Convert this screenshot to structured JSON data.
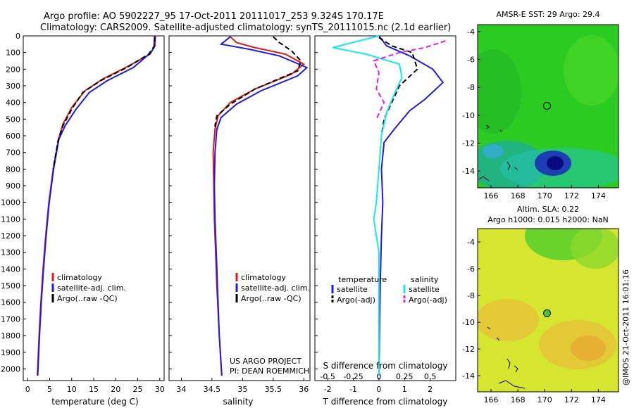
{
  "header": {
    "line1": "Argo profile: AO 5902227_95 17-Oct-2011 20111017_253 9.324S 170.17E",
    "line2": "Climatology: CARS2009. Satellite-adjusted climatology: synTS_20111015.nc (2.1d earlier)"
  },
  "credit": "@IMOS 21-Oct-2011 16:01:16",
  "project": {
    "line1": "US ARGO PROJECT",
    "line2": "PI: DEAN ROEMMICH"
  },
  "colors": {
    "red": "#e8170f",
    "blue": "#1c1ce6",
    "black": "#000000",
    "cyan": "#17e8ef",
    "magenta": "#e11ce6"
  },
  "chart_data": [
    {
      "type": "line",
      "xlabel": "temperature (deg C)",
      "ylabel": "",
      "xlim": [
        -1,
        31
      ],
      "ylim": [
        0,
        2070
      ],
      "xticks": [
        0,
        5,
        10,
        15,
        20,
        25,
        30
      ],
      "yticks": [
        0,
        100,
        200,
        300,
        400,
        500,
        600,
        700,
        800,
        900,
        1000,
        1100,
        1200,
        1300,
        1400,
        1500,
        1600,
        1700,
        1800,
        1900,
        2000
      ],
      "legend": [
        "climatology",
        "satellite-adj. clim.",
        "Argo(..raw -QC)"
      ],
      "series": [
        {
          "name": "climatology",
          "color": "red",
          "style": "solid",
          "points": [
            [
              29.0,
              0
            ],
            [
              28.9,
              60
            ],
            [
              27.8,
              110
            ],
            [
              23,
              180
            ],
            [
              17,
              260
            ],
            [
              13,
              330
            ],
            [
              10,
              430
            ],
            [
              8,
              530
            ],
            [
              7,
              620
            ],
            [
              5.8,
              800
            ],
            [
              4.8,
              1000
            ],
            [
              4.1,
              1200
            ],
            [
              3.5,
              1400
            ],
            [
              3.0,
              1600
            ],
            [
              2.6,
              1800
            ],
            [
              2.2,
              2040
            ]
          ]
        },
        {
          "name": "satellite-adj. clim.",
          "color": "blue",
          "style": "solid",
          "points": [
            [
              28.8,
              0
            ],
            [
              28.7,
              70
            ],
            [
              28.0,
              100
            ],
            [
              24,
              190
            ],
            [
              18,
              270
            ],
            [
              14,
              340
            ],
            [
              11,
              440
            ],
            [
              8.5,
              540
            ],
            [
              7.1,
              620
            ],
            [
              5.9,
              800
            ],
            [
              4.9,
              1000
            ],
            [
              4.2,
              1200
            ],
            [
              3.6,
              1400
            ],
            [
              3.1,
              1600
            ],
            [
              2.7,
              1800
            ],
            [
              2.3,
              2040
            ]
          ]
        },
        {
          "name": "Argo(..raw -QC)",
          "color": "black",
          "style": "dashed",
          "points": [
            [
              28.9,
              5
            ],
            [
              28.8,
              60
            ],
            [
              27.5,
              110
            ],
            [
              22.5,
              190
            ],
            [
              16.5,
              270
            ],
            [
              12.5,
              340
            ],
            [
              10,
              440
            ],
            [
              8,
              540
            ],
            [
              6.9,
              630
            ],
            [
              5.8,
              800
            ]
          ]
        }
      ]
    },
    {
      "type": "line",
      "xlabel": "salinity",
      "xlim": [
        33.8,
        36.1
      ],
      "ylim": [
        0,
        2070
      ],
      "xticks": [
        34,
        34.5,
        35,
        35.5,
        36
      ],
      "legend": [
        "climatology",
        "satellite-adj. clim.",
        "Argo(..raw -QC)"
      ],
      "series": [
        {
          "name": "climatology",
          "color": "red",
          "style": "solid",
          "points": [
            [
              34.8,
              5
            ],
            [
              34.9,
              40
            ],
            [
              35.2,
              70
            ],
            [
              35.7,
              110
            ],
            [
              36.0,
              170
            ],
            [
              35.8,
              230
            ],
            [
              35.2,
              320
            ],
            [
              34.8,
              400
            ],
            [
              34.6,
              480
            ],
            [
              34.55,
              560
            ],
            [
              34.52,
              700
            ],
            [
              34.53,
              900
            ],
            [
              34.54,
              1100
            ],
            [
              34.56,
              1300
            ],
            [
              34.58,
              1500
            ],
            [
              34.62,
              1800
            ],
            [
              34.66,
              2040
            ]
          ]
        },
        {
          "name": "satellite-adj. clim.",
          "color": "blue",
          "style": "solid",
          "points": [
            [
              34.8,
              5
            ],
            [
              34.65,
              50
            ],
            [
              35.1,
              80
            ],
            [
              35.6,
              120
            ],
            [
              36.05,
              190
            ],
            [
              35.9,
              240
            ],
            [
              35.3,
              330
            ],
            [
              34.9,
              410
            ],
            [
              34.65,
              490
            ],
            [
              34.58,
              560
            ],
            [
              34.55,
              700
            ],
            [
              34.54,
              900
            ],
            [
              34.55,
              1100
            ],
            [
              34.57,
              1300
            ],
            [
              34.59,
              1500
            ],
            [
              34.62,
              1800
            ],
            [
              34.66,
              2040
            ]
          ]
        },
        {
          "name": "Argo(..raw -QC)",
          "color": "black",
          "style": "dashed",
          "points": [
            [
              35.5,
              5
            ],
            [
              35.6,
              40
            ],
            [
              35.8,
              90
            ],
            [
              35.95,
              150
            ],
            [
              35.9,
              210
            ],
            [
              35.2,
              320
            ],
            [
              34.8,
              410
            ],
            [
              34.58,
              480
            ],
            [
              34.55,
              540
            ],
            [
              34.6,
              560
            ]
          ]
        }
      ]
    },
    {
      "type": "line",
      "xlabel": "T difference from climatology",
      "top_label": "S difference from climatology",
      "xlim": [
        -2.5,
        3.0
      ],
      "ylim": [
        0,
        2070
      ],
      "xticks": [
        -2,
        -1,
        0,
        1,
        2
      ],
      "top_ticks": [
        "-0.5",
        "-0.25",
        "0",
        "0.25",
        "0.5"
      ],
      "legend_headers": [
        "temperature",
        "salinity"
      ],
      "legend": [
        "satellite",
        "Argo(-adj)",
        "satellite",
        "Argo(-adj)"
      ],
      "series": [
        {
          "name": "satellite",
          "color": "blue",
          "style": "solid",
          "points": [
            [
              0,
              0
            ],
            [
              0.3,
              60
            ],
            [
              1.2,
              120
            ],
            [
              2.1,
              200
            ],
            [
              2.5,
              280
            ],
            [
              1.8,
              380
            ],
            [
              1.2,
              450
            ],
            [
              0.6,
              560
            ],
            [
              0.2,
              640
            ],
            [
              0.1,
              800
            ],
            [
              0.15,
              1000
            ],
            [
              0.1,
              1200
            ],
            [
              0.05,
              1500
            ],
            [
              0,
              2040
            ]
          ]
        },
        {
          "name": "Argo(-adj)",
          "color": "black",
          "style": "dashed",
          "points": [
            [
              0,
              10
            ],
            [
              0.5,
              60
            ],
            [
              1.3,
              100
            ],
            [
              1.5,
              200
            ],
            [
              0.8,
              300
            ],
            [
              0.5,
              400
            ],
            [
              0.2,
              500
            ],
            [
              0.1,
              600
            ]
          ]
        },
        {
          "name": "satellite",
          "color": "cyan",
          "style": "solid",
          "points": [
            [
              0,
              0
            ],
            [
              -1.8,
              70
            ],
            [
              -0.5,
              110
            ],
            [
              0.8,
              170
            ],
            [
              0.9,
              250
            ],
            [
              0.6,
              350
            ],
            [
              0.3,
              460
            ],
            [
              0.1,
              600
            ],
            [
              0,
              800
            ],
            [
              -0.1,
              1000
            ],
            [
              -0.2,
              1100
            ],
            [
              0,
              1300
            ],
            [
              0,
              2040
            ]
          ]
        },
        {
          "name": "Argo(-adj)",
          "color": "magenta",
          "style": "dashed",
          "points": [
            [
              2.6,
              30
            ],
            [
              1.8,
              70
            ],
            [
              0.8,
              100
            ],
            [
              -0.2,
              150
            ],
            [
              0,
              220
            ],
            [
              -0.1,
              320
            ],
            [
              0.2,
              400
            ],
            [
              -0.1,
              500
            ]
          ]
        }
      ]
    },
    {
      "type": "heatmap",
      "title": "AMSR-E SST: 29 Argo: 29.4",
      "xlim": [
        165,
        175.5
      ],
      "ylim": [
        -15.2,
        -3.5
      ],
      "xticks": [
        166,
        168,
        170,
        172,
        174
      ],
      "yticks": [
        -4,
        -6,
        -8,
        -10,
        -12,
        -14
      ],
      "marker": [
        170.17,
        -9.324
      ]
    },
    {
      "type": "heatmap",
      "title": "Altim. SLA: 0.22",
      "subtitle": "Argo h1000: 0.015 h2000: NaN",
      "xlim": [
        165,
        175.5
      ],
      "ylim": [
        -15.2,
        -3
      ],
      "xticks": [
        166,
        168,
        170,
        172,
        174
      ],
      "yticks": [
        -4,
        -6,
        -8,
        -10,
        -12,
        -14
      ],
      "marker": [
        170.17,
        -9.324
      ]
    }
  ]
}
